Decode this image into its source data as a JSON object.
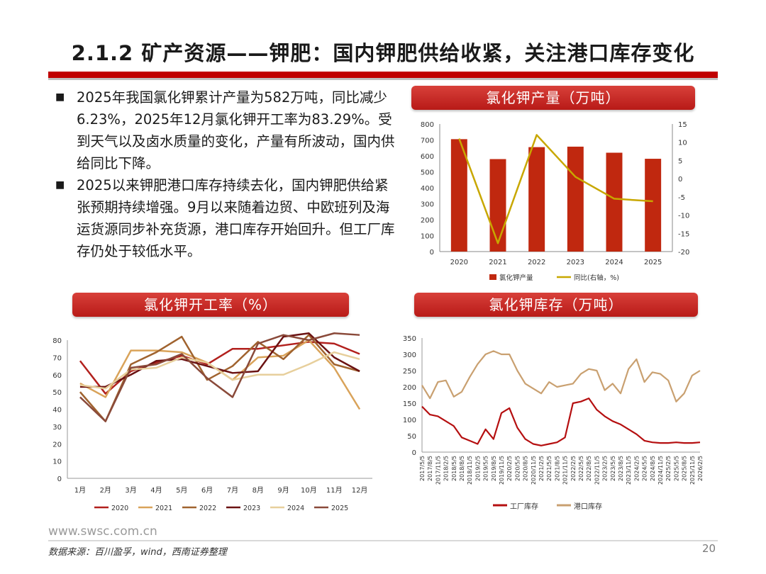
{
  "title": "2.1.2 矿产资源——钾肥：国内钾肥供给收紧，关注港口库存变化",
  "bullets": [
    "2025年我国氯化钾累计产量为582万吨，同比减少6.23%，2025年12月氯化钾开工率为83.29%。受到天气以及卤水质量的变化，产量有所波动，国内供给同比下降。",
    "2025以来钾肥港口库存持续去化，国内钾肥供给紧张预期持续增强。9月以来随着边贸、中欧班列及海运货源同步补充货源，港口库存开始回升。但工厂库存仍处于较低水平。"
  ],
  "footer": {
    "url": "www.swsc.com.cn",
    "source": "数据来源：百川盈孚，wind，西南证券整理",
    "page": "20"
  },
  "colors": {
    "accent": "#c00000",
    "bar": "#c0280f",
    "line_yellow": "#c8a700"
  },
  "chart_data": [
    {
      "id": "production",
      "type": "bar",
      "title": "氯化钾产量（万吨）",
      "categories": [
        "2020",
        "2021",
        "2022",
        "2023",
        "2024",
        "2025"
      ],
      "series": [
        {
          "name": "氯化钾产量",
          "type": "bar",
          "axis": "left",
          "color": "#c0280f",
          "values": [
            705,
            580,
            655,
            658,
            620,
            582
          ]
        },
        {
          "name": "同比(右轴，%)",
          "type": "line",
          "axis": "right",
          "color": "#c8a700",
          "values": [
            11,
            -17.7,
            12,
            0.5,
            -5.5,
            -6.2
          ]
        }
      ],
      "ylim": [
        0,
        800
      ],
      "yticks": [
        0,
        100,
        200,
        300,
        400,
        500,
        600,
        700,
        800
      ],
      "y2lim": [
        -20,
        15
      ],
      "y2ticks": [
        -20,
        -15,
        -10,
        -5,
        0,
        5,
        10,
        15
      ],
      "legend": "bottom"
    },
    {
      "id": "utilization",
      "type": "line",
      "title": "氯化钾开工率（%）",
      "categories": [
        "1月",
        "2月",
        "3月",
        "4月",
        "5月",
        "6月",
        "7月",
        "8月",
        "9月",
        "10月",
        "11月",
        "12月"
      ],
      "ylim": [
        0,
        80
      ],
      "yticks": [
        0,
        10,
        20,
        30,
        40,
        50,
        60,
        70,
        80
      ],
      "series": [
        {
          "name": "2020",
          "color": "#b2201d",
          "values": [
            68,
            49,
            62,
            67,
            71,
            66,
            75,
            75,
            77,
            79,
            78,
            72
          ]
        },
        {
          "name": "2021",
          "color": "#d9a35a",
          "values": [
            55,
            47,
            74,
            74,
            73,
            67,
            57,
            70,
            71,
            80,
            64,
            40
          ]
        },
        {
          "name": "2022",
          "color": "#a0632f",
          "values": [
            50,
            33,
            66,
            73,
            82,
            57,
            65,
            79,
            69,
            83,
            66,
            62
          ]
        },
        {
          "name": "2023",
          "color": "#6b1212",
          "values": [
            53,
            53,
            60,
            68,
            69,
            65,
            61,
            62,
            82,
            84,
            70,
            62
          ]
        },
        {
          "name": "2024",
          "color": "#e7cf9c",
          "values": [
            54,
            52,
            63,
            64,
            70,
            67,
            57,
            60,
            60,
            66,
            73,
            69
          ]
        },
        {
          "name": "2025",
          "color": "#8a4a3a",
          "values": [
            47,
            33,
            64,
            66,
            72,
            58,
            47,
            78,
            83,
            80,
            84,
            83
          ]
        }
      ],
      "legend": "bottom"
    },
    {
      "id": "inventory",
      "type": "line",
      "title": "氯化钾库存（万吨）",
      "x": [
        "2017/5/5",
        "2017/8/5",
        "2017/11/5",
        "2018/2/5",
        "2018/5/5",
        "2018/8/5",
        "2018/11/5",
        "2019/2/5",
        "2019/5/5",
        "2019/8/5",
        "2019/11/5",
        "2020/2/5",
        "2020/5/5",
        "2020/8/5",
        "2020/11/5",
        "2021/2/5",
        "2021/5/5",
        "2021/8/5",
        "2021/11/5",
        "2022/2/5",
        "2022/5/5",
        "2022/8/5",
        "2022/11/5",
        "2023/2/5",
        "2023/5/5",
        "2023/8/5",
        "2023/11/5",
        "2024/2/5",
        "2024/5/5",
        "2024/8/5",
        "2024/11/5",
        "2025/2/5",
        "2025/5/5",
        "2025/8/5",
        "2025/11/5",
        "2026/2/5"
      ],
      "ylim": [
        0,
        350
      ],
      "yticks": [
        0,
        50,
        100,
        150,
        200,
        250,
        300,
        350
      ],
      "series": [
        {
          "name": "工厂库存",
          "color": "#b50f10",
          "values": [
            140,
            115,
            110,
            95,
            80,
            45,
            35,
            25,
            70,
            40,
            120,
            135,
            75,
            40,
            25,
            20,
            25,
            30,
            45,
            150,
            155,
            165,
            130,
            110,
            95,
            85,
            70,
            55,
            35,
            30,
            28,
            28,
            30,
            28,
            28,
            30
          ]
        },
        {
          "name": "港口库存",
          "color": "#c9a070",
          "values": [
            205,
            165,
            215,
            220,
            170,
            185,
            230,
            270,
            300,
            310,
            300,
            300,
            250,
            210,
            195,
            180,
            215,
            200,
            205,
            210,
            240,
            255,
            250,
            190,
            210,
            180,
            255,
            285,
            215,
            245,
            240,
            220,
            155,
            180,
            235,
            250
          ]
        }
      ],
      "legend": "bottom"
    }
  ]
}
